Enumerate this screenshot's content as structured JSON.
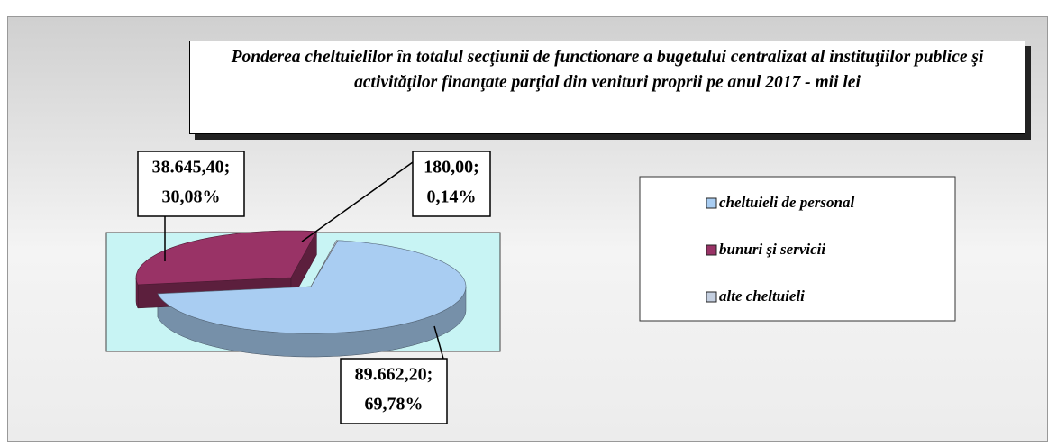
{
  "chart_data": {
    "type": "pie",
    "title": "Ponderea cheltuielilor în totalul secţiunii de functionare a bugetului centralizat al instituţiilor publice şi activităţilor finanţate parţial din venituri proprii pe anul 2017 - mii lei",
    "series": [
      {
        "name": "cheltuieli de personal",
        "color": "#a9cdf2"
      },
      {
        "name": "bunuri şi servicii",
        "color": "#993366"
      },
      {
        "name": "alte cheltuieli",
        "color": "#c4cfe0"
      }
    ],
    "values": [
      89662.2,
      38645.4,
      180
    ],
    "value_labels": [
      [
        "89.662,20;",
        "69,78%"
      ],
      [
        "38.645,40;",
        "30,08%"
      ],
      [
        "180,00;",
        "0,14%"
      ]
    ],
    "legend": "right"
  }
}
